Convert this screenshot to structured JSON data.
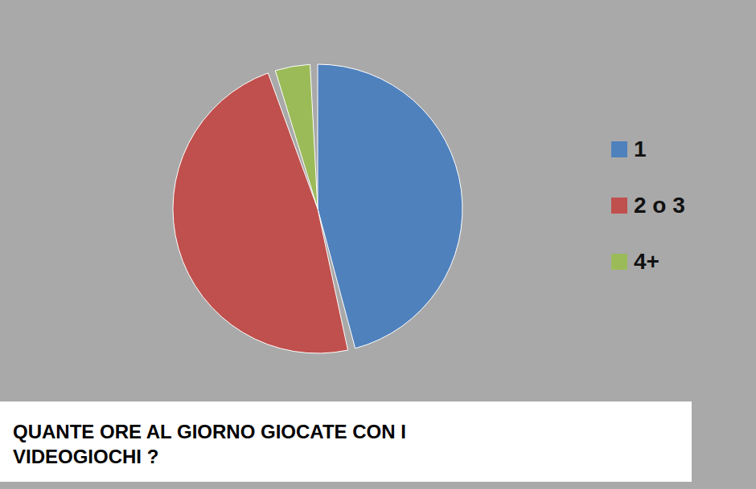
{
  "chart_data": {
    "type": "pie",
    "title": "QUANTE ORE AL GIORNO GIOCATE CON I VIDEOGIOCHI ?",
    "categories": [
      "1",
      "2 o 3",
      "4+"
    ],
    "values": [
      47,
      49,
      4
    ],
    "colors": [
      "#4f81bd",
      "#c0504d",
      "#9bbb59"
    ],
    "legend": "right"
  }
}
